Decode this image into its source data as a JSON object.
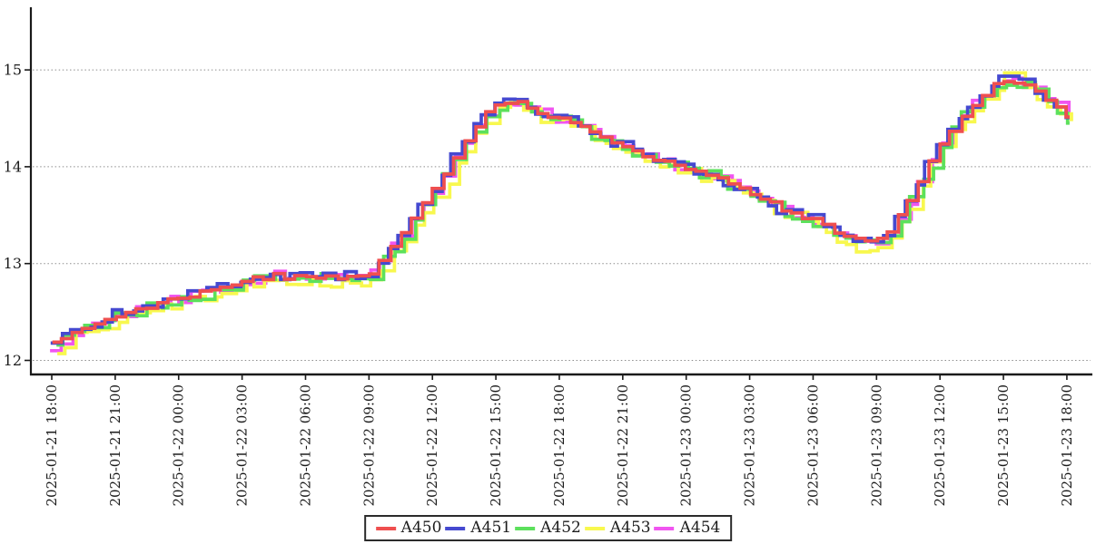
{
  "chart_data": {
    "type": "line",
    "subtype": "step",
    "title": "",
    "xlabel": "",
    "ylabel": "",
    "x_start": "2025-01-21 18:00",
    "x_end": "2025-01-23 18:00",
    "x_point_interval_hours": 0.5,
    "x_tick_labels": [
      "2025-01-21 18:00",
      "2025-01-21 21:00",
      "2025-01-22 00:00",
      "2025-01-22 03:00",
      "2025-01-22 06:00",
      "2025-01-22 09:00",
      "2025-01-22 12:00",
      "2025-01-22 15:00",
      "2025-01-22 18:00",
      "2025-01-22 21:00",
      "2025-01-23 00:00",
      "2025-01-23 03:00",
      "2025-01-23 06:00",
      "2025-01-23 09:00",
      "2025-01-23 12:00",
      "2025-01-23 15:00",
      "2025-01-23 18:00"
    ],
    "x_tick_interval_hours": 3,
    "y_ticks": [
      12,
      13,
      14,
      15
    ],
    "ylim": [
      11.85,
      15.6
    ],
    "grid": "horizontal-dotted",
    "grid_color": "#8d8d8d",
    "axis_color": "#1a1a1a",
    "legend_position": "bottom-center",
    "base_values": [
      12.18,
      12.22,
      12.28,
      12.33,
      12.38,
      12.42,
      12.46,
      12.5,
      12.52,
      12.55,
      12.58,
      12.62,
      12.64,
      12.67,
      12.7,
      12.73,
      12.76,
      12.79,
      12.82,
      12.85,
      12.85,
      12.88,
      12.85,
      12.86,
      12.88,
      12.85,
      12.86,
      12.85,
      12.88,
      12.86,
      12.9,
      13.04,
      13.18,
      13.32,
      13.48,
      13.62,
      13.78,
      13.92,
      14.08,
      14.25,
      14.42,
      14.55,
      14.63,
      14.67,
      14.67,
      14.62,
      14.55,
      14.5,
      14.5,
      14.45,
      14.4,
      14.35,
      14.3,
      14.25,
      14.2,
      14.15,
      14.12,
      14.08,
      14.05,
      14.0,
      13.97,
      13.95,
      13.92,
      13.88,
      13.82,
      13.78,
      13.72,
      13.68,
      13.62,
      13.55,
      13.52,
      13.48,
      13.45,
      13.4,
      13.32,
      13.28,
      13.25,
      13.22,
      13.25,
      13.32,
      13.5,
      13.65,
      13.85,
      14.05,
      14.22,
      14.38,
      14.52,
      14.65,
      14.75,
      14.85,
      14.88,
      14.88,
      14.85,
      14.78,
      14.7,
      14.62,
      14.52
    ],
    "series": [
      {
        "name": "A450",
        "color": "#ef4f4f",
        "bias": 0.0,
        "amp": 0.018,
        "tshift": 0.0,
        "tjit": 0.12,
        "seed": 3
      },
      {
        "name": "A451",
        "color": "#4549d0",
        "bias": 0.012,
        "amp": 0.055,
        "tshift": -0.12,
        "tjit": 0.28,
        "seed": 7
      },
      {
        "name": "A452",
        "color": "#5ce05c",
        "bias": -0.012,
        "amp": 0.06,
        "tshift": 0.1,
        "tjit": 0.28,
        "seed": 13
      },
      {
        "name": "A453",
        "color": "#f8f84e",
        "bias": -0.05,
        "amp": 0.065,
        "tshift": 0.18,
        "tjit": 0.28,
        "seed": 19
      },
      {
        "name": "A454",
        "color": "#f055f0",
        "bias": -0.005,
        "amp": 0.05,
        "tshift": 0.05,
        "tjit": 0.28,
        "seed": 29
      }
    ],
    "overrides": [
      {
        "series": "A453",
        "index": 0,
        "value": 12.07
      },
      {
        "series": "A454",
        "index": 0,
        "value": 12.1
      },
      {
        "series": "A453",
        "index": 76,
        "value": 13.12
      },
      {
        "series": "A453",
        "index": 90,
        "value": 14.97
      },
      {
        "series": "A453",
        "index": 91,
        "value": 14.97
      }
    ]
  }
}
